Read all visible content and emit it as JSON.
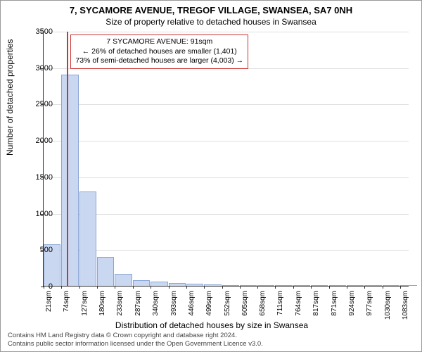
{
  "title": "7, SYCAMORE AVENUE, TREGOF VILLAGE, SWANSEA, SA7 0NH",
  "subtitle": "Size of property relative to detached houses in Swansea",
  "ylabel": "Number of detached properties",
  "xlabel": "Distribution of detached houses by size in Swansea",
  "chart": {
    "type": "histogram",
    "ylim": [
      0,
      3500
    ],
    "ytick_step": 500,
    "yticks": [
      0,
      500,
      1000,
      1500,
      2000,
      2500,
      3000,
      3500
    ],
    "xmin": 21,
    "xmax": 1110,
    "xticks": [
      21,
      74,
      127,
      180,
      233,
      287,
      340,
      393,
      446,
      499,
      552,
      605,
      658,
      711,
      764,
      817,
      871,
      924,
      977,
      1030,
      1083
    ],
    "xtick_unit": "sqm",
    "bar_color": "#c9d8f0",
    "bar_border": "#8aa5d6",
    "grid_color": "#e0e0e0",
    "axis_color": "#333333",
    "background_color": "#ffffff",
    "bins": [
      {
        "x": 21,
        "count": 570
      },
      {
        "x": 74,
        "count": 2900
      },
      {
        "x": 127,
        "count": 1300
      },
      {
        "x": 180,
        "count": 400
      },
      {
        "x": 233,
        "count": 160
      },
      {
        "x": 287,
        "count": 80
      },
      {
        "x": 340,
        "count": 55
      },
      {
        "x": 393,
        "count": 40
      },
      {
        "x": 446,
        "count": 25
      },
      {
        "x": 499,
        "count": 15
      },
      {
        "x": 552,
        "count": 10
      },
      {
        "x": 605,
        "count": 8
      },
      {
        "x": 658,
        "count": 3
      },
      {
        "x": 711,
        "count": 3
      },
      {
        "x": 764,
        "count": 3
      },
      {
        "x": 817,
        "count": 2
      },
      {
        "x": 871,
        "count": 2
      },
      {
        "x": 924,
        "count": 0
      },
      {
        "x": 977,
        "count": 1
      },
      {
        "x": 1030,
        "count": 0
      },
      {
        "x": 1083,
        "count": 2
      }
    ],
    "marker": {
      "value": 91,
      "color": "#cc3333"
    }
  },
  "annotation": {
    "line1": "7 SYCAMORE AVENUE: 91sqm",
    "line2": "← 26% of detached houses are smaller (1,401)",
    "line3": "73% of semi-detached houses are larger (4,003) →",
    "border_color": "#cc3333",
    "fontsize": 10.5
  },
  "footer": {
    "line1": "Contains HM Land Registry data © Crown copyright and database right 2024.",
    "line2": "Contains public sector information licensed under the Open Government Licence v3.0."
  }
}
